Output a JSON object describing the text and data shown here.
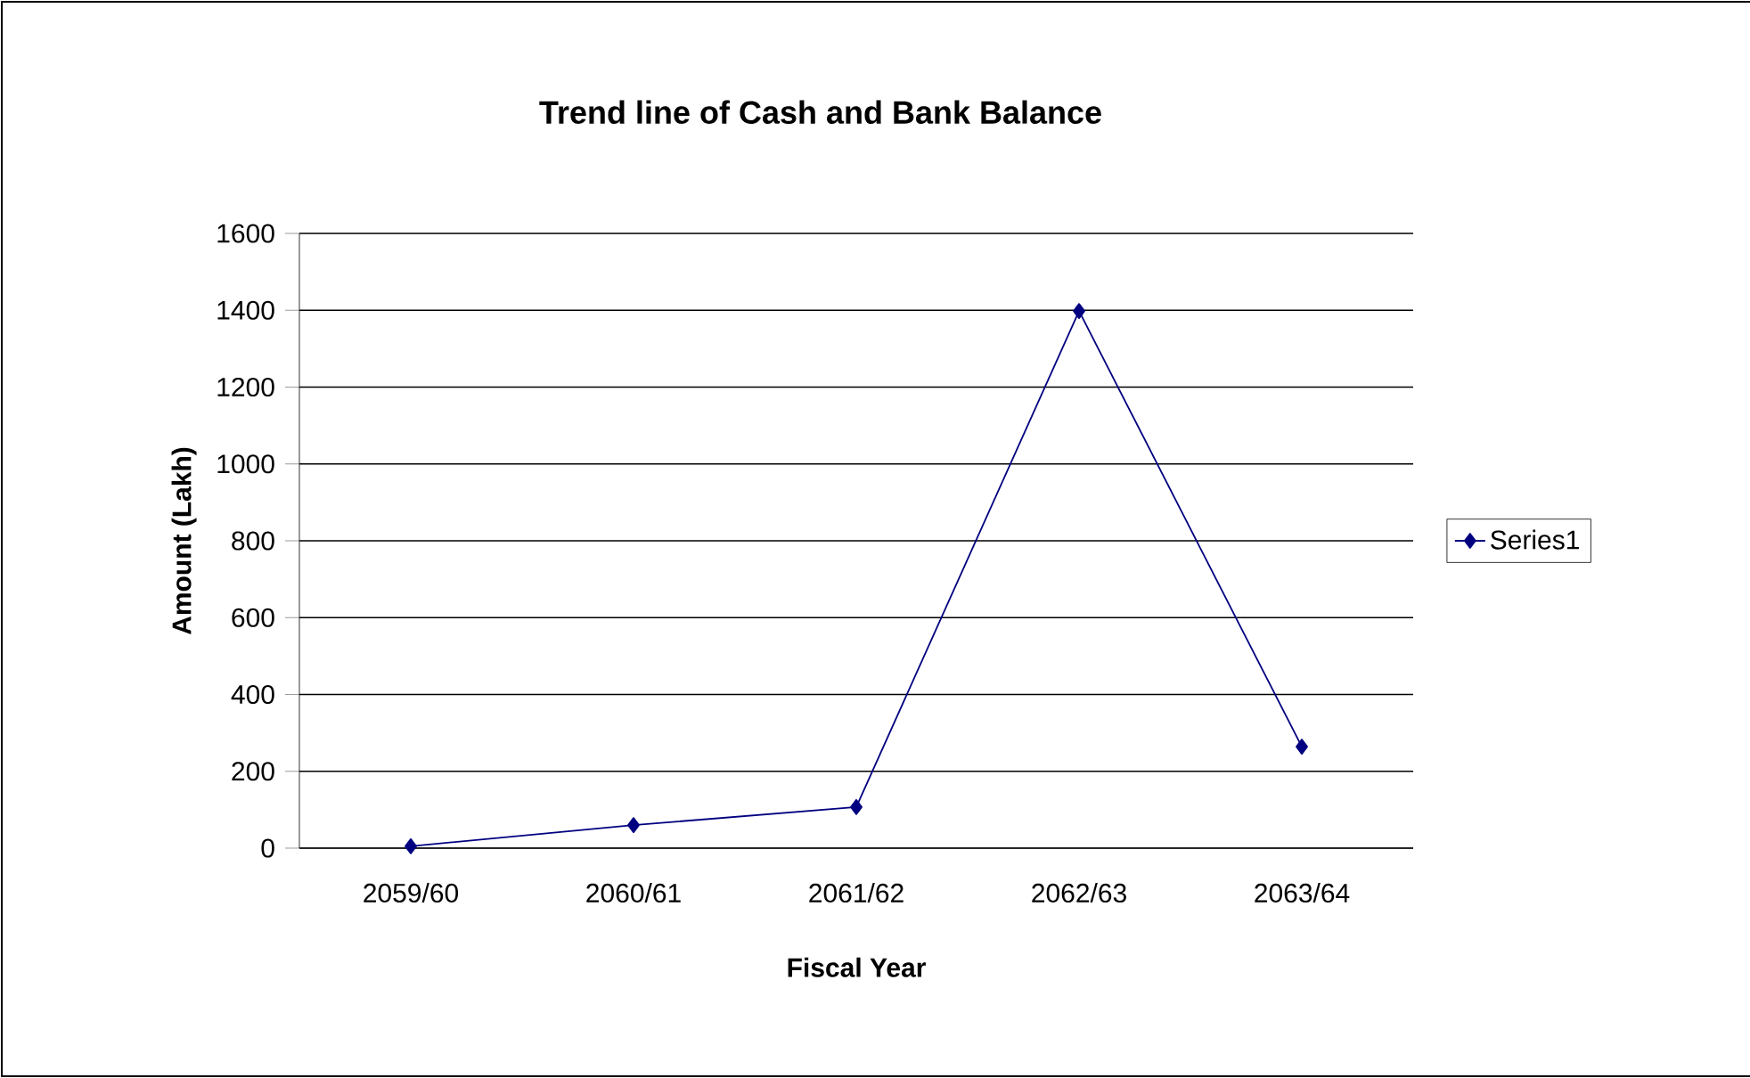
{
  "chart_data": {
    "type": "line",
    "title": "Trend line of Cash and Bank Balance",
    "xlabel": "Fiscal Year",
    "ylabel": "Amount (Lakh)",
    "categories": [
      "2059/60",
      "2060/61",
      "2061/62",
      "2062/63",
      "2063/64"
    ],
    "series": [
      {
        "name": "Series1",
        "color": "#000080",
        "values": [
          5,
          60,
          107,
          1398,
          264
        ]
      }
    ],
    "ylim": [
      0,
      1600
    ],
    "yticks": [
      0,
      200,
      400,
      600,
      800,
      1000,
      1200,
      1400,
      1600
    ],
    "grid": "y",
    "legend": "right",
    "marker": "diamond",
    "line_style": "solid"
  }
}
